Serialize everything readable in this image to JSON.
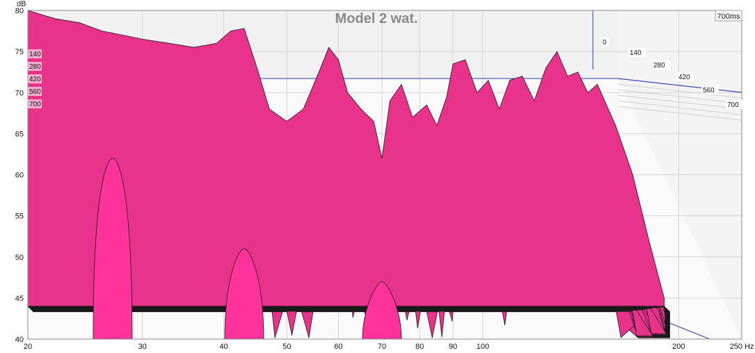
{
  "chart_data": {
    "type": "area",
    "title": "Model 2 wat.",
    "y_unit": "dB",
    "x_unit": "Hz",
    "time_unit": "ms",
    "time_corner_label": "700ms",
    "x_scale": "log",
    "xlim": [
      20,
      250
    ],
    "ylim": [
      40,
      80
    ],
    "x_ticks": [
      {
        "value": 20,
        "label": "20"
      },
      {
        "value": 30,
        "label": "30"
      },
      {
        "value": 40,
        "label": "40"
      },
      {
        "value": 50,
        "label": "50"
      },
      {
        "value": 60,
        "label": "60"
      },
      {
        "value": 70,
        "label": "70"
      },
      {
        "value": 80,
        "label": "80"
      },
      {
        "value": 90,
        "label": "90"
      },
      {
        "value": 100,
        "label": "100"
      },
      {
        "value": 200,
        "label": "200"
      },
      {
        "value": 250,
        "label": "250 Hz"
      }
    ],
    "y_ticks": [
      {
        "value": 80,
        "label": "80"
      },
      {
        "value": 75,
        "label": "75"
      },
      {
        "value": 70,
        "label": "70"
      },
      {
        "value": 65,
        "label": "65"
      },
      {
        "value": 60,
        "label": "60"
      },
      {
        "value": 55,
        "label": "55"
      },
      {
        "value": 50,
        "label": "50"
      },
      {
        "value": 45,
        "label": "45"
      },
      {
        "value": 40,
        "label": "40"
      }
    ],
    "y_unit_label": "dB",
    "time_slices": [
      {
        "value": 0,
        "label": "0"
      },
      {
        "value": 140,
        "label": "140"
      },
      {
        "value": 280,
        "label": "280"
      },
      {
        "value": 420,
        "label": "420"
      },
      {
        "value": 560,
        "label": "560"
      },
      {
        "value": 700,
        "label": "700"
      }
    ],
    "left_time_labels": [
      "140",
      "280",
      "420",
      "560",
      "700"
    ],
    "fill_color": "#e8338a",
    "front_fill_color": "#ff3399",
    "line_color": "#1a1a1a",
    "grid": true,
    "series_first": {
      "name": "",
      "x": [
        20,
        22,
        24,
        26,
        28,
        30,
        33,
        36,
        39,
        41,
        43,
        45,
        47,
        50,
        53,
        56,
        58,
        60,
        62,
        65,
        68,
        70,
        72,
        75,
        78,
        82,
        85,
        88,
        90,
        94,
        98,
        102,
        106,
        110,
        115,
        120,
        125,
        130,
        135,
        140,
        145,
        150,
        160,
        170,
        180,
        190
      ],
      "y": [
        80,
        79,
        78.5,
        77.5,
        77,
        76.5,
        76,
        75.5,
        76,
        77.5,
        77.8,
        73,
        68,
        66.5,
        68,
        72.5,
        75.5,
        74,
        70,
        68,
        66.5,
        62,
        69,
        71,
        67,
        68.5,
        66,
        69.5,
        73.5,
        74,
        70,
        71.5,
        68,
        71.5,
        72,
        69,
        73,
        75,
        72,
        72.5,
        70,
        71,
        66,
        60,
        52,
        45
      ]
    },
    "front_peaks": [
      {
        "x": 27,
        "y": 62
      },
      {
        "x": 43,
        "y": 51
      },
      {
        "x": 70,
        "y": 47
      }
    ]
  }
}
